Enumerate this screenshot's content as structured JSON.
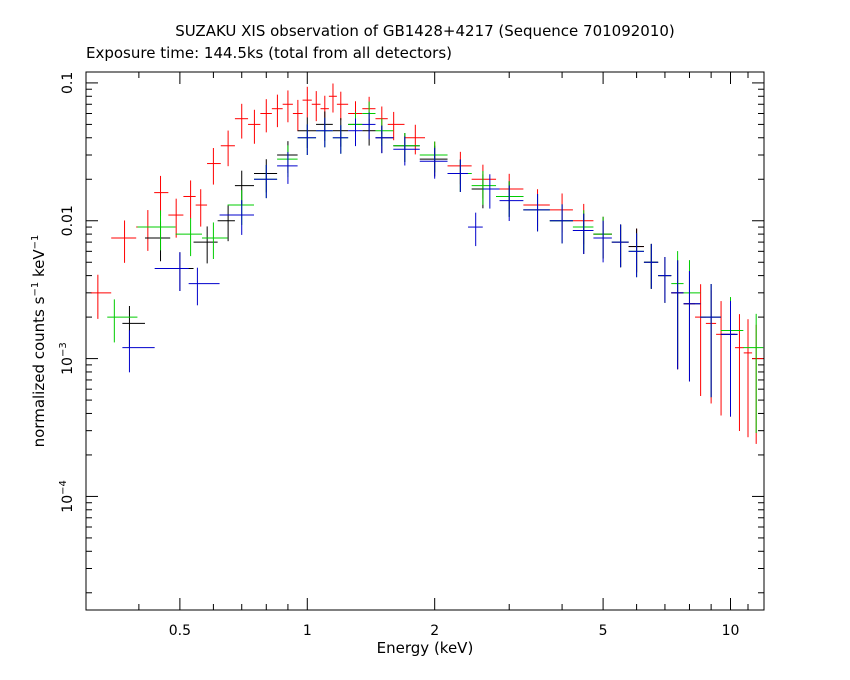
{
  "chart_data": {
    "type": "scatter",
    "title": "SUZAKU XIS observation of GB1428+4217 (Sequence 701092010)",
    "subtitle": "Exposure time: 144.5ks (total from all detectors)",
    "xlabel": "Energy (keV)",
    "ylabel": {
      "base": "normalized counts s",
      "sup1": "−1",
      "mid": " keV",
      "sup2": "−1"
    },
    "xscale": "log",
    "yscale": "log",
    "xlim": [
      0.3,
      12
    ],
    "ylim": [
      1.5e-05,
      0.12
    ],
    "x_ticks": [
      {
        "value": 0.5,
        "label": "0.5"
      },
      {
        "value": 1,
        "label": "1"
      },
      {
        "value": 2,
        "label": "2"
      },
      {
        "value": 5,
        "label": "5"
      },
      {
        "value": 10,
        "label": "10"
      }
    ],
    "y_ticks": [
      {
        "value": 0.1,
        "base": "0.1",
        "exp": ""
      },
      {
        "value": 0.01,
        "base": "0.01",
        "exp": ""
      },
      {
        "value": 0.001,
        "base": "10",
        "exp": "−3"
      },
      {
        "value": 0.0001,
        "base": "10",
        "exp": "−4"
      }
    ],
    "grid": false,
    "series": [
      {
        "color": "#ff0000",
        "data": [
          [
            0.32,
            0.003
          ],
          [
            0.37,
            0.0075
          ],
          [
            0.42,
            0.009
          ],
          [
            0.45,
            0.016
          ],
          [
            0.49,
            0.011
          ],
          [
            0.53,
            0.015
          ],
          [
            0.56,
            0.013
          ],
          [
            0.6,
            0.026
          ],
          [
            0.65,
            0.035
          ],
          [
            0.7,
            0.055
          ],
          [
            0.75,
            0.05
          ],
          [
            0.8,
            0.06
          ],
          [
            0.85,
            0.065
          ],
          [
            0.9,
            0.07
          ],
          [
            0.95,
            0.06
          ],
          [
            1.0,
            0.075
          ],
          [
            1.05,
            0.07
          ],
          [
            1.1,
            0.065
          ],
          [
            1.15,
            0.08
          ],
          [
            1.2,
            0.07
          ],
          [
            1.3,
            0.06
          ],
          [
            1.4,
            0.065
          ],
          [
            1.5,
            0.055
          ],
          [
            1.6,
            0.05
          ],
          [
            1.8,
            0.04
          ],
          [
            2.0,
            0.03
          ],
          [
            2.3,
            0.025
          ],
          [
            2.6,
            0.02
          ],
          [
            3.0,
            0.017
          ],
          [
            3.5,
            0.013
          ],
          [
            4.0,
            0.012
          ],
          [
            4.5,
            0.01
          ],
          [
            5.0,
            0.008
          ],
          [
            5.5,
            0.007
          ],
          [
            6.0,
            0.0065
          ],
          [
            6.5,
            0.005
          ],
          [
            7.0,
            0.004
          ],
          [
            7.5,
            0.003
          ],
          [
            8.0,
            0.0025
          ],
          [
            8.5,
            0.002
          ],
          [
            9.0,
            0.0018
          ],
          [
            9.5,
            0.0015
          ],
          [
            10.0,
            0.0015
          ],
          [
            10.5,
            0.0012
          ],
          [
            11.0,
            0.0011
          ],
          [
            11.5,
            0.001
          ]
        ]
      },
      {
        "color": "#000000",
        "data": [
          [
            0.38,
            0.0018
          ],
          [
            0.45,
            0.0075
          ],
          [
            0.5,
            0.0045
          ],
          [
            0.58,
            0.007
          ],
          [
            0.65,
            0.01
          ],
          [
            0.7,
            0.018
          ],
          [
            0.8,
            0.022
          ],
          [
            0.9,
            0.03
          ],
          [
            1.0,
            0.045
          ],
          [
            1.1,
            0.05
          ],
          [
            1.2,
            0.045
          ],
          [
            1.3,
            0.05
          ],
          [
            1.4,
            0.045
          ],
          [
            1.5,
            0.04
          ],
          [
            1.7,
            0.035
          ],
          [
            2.0,
            0.028
          ],
          [
            2.3,
            0.022
          ],
          [
            2.6,
            0.017
          ],
          [
            3.0,
            0.015
          ],
          [
            3.5,
            0.012
          ],
          [
            4.0,
            0.01
          ],
          [
            4.5,
            0.0085
          ],
          [
            5.0,
            0.008
          ],
          [
            5.5,
            0.007
          ],
          [
            6.0,
            0.0065
          ],
          [
            6.5,
            0.005
          ],
          [
            7.0,
            0.004
          ],
          [
            7.5,
            0.003
          ],
          [
            8.0,
            0.0025
          ],
          [
            9.0,
            0.002
          ],
          [
            10.0,
            0.0015
          ]
        ]
      },
      {
        "color": "#00cc00",
        "data": [
          [
            0.35,
            0.002
          ],
          [
            0.45,
            0.009
          ],
          [
            0.53,
            0.008
          ],
          [
            0.6,
            0.0075
          ],
          [
            0.7,
            0.013
          ],
          [
            0.8,
            0.02
          ],
          [
            0.9,
            0.028
          ],
          [
            1.0,
            0.04
          ],
          [
            1.1,
            0.045
          ],
          [
            1.2,
            0.04
          ],
          [
            1.3,
            0.05
          ],
          [
            1.4,
            0.06
          ],
          [
            1.5,
            0.045
          ],
          [
            1.7,
            0.035
          ],
          [
            2.0,
            0.03
          ],
          [
            2.3,
            0.022
          ],
          [
            2.6,
            0.018
          ],
          [
            3.0,
            0.015
          ],
          [
            3.5,
            0.012
          ],
          [
            4.0,
            0.01
          ],
          [
            4.5,
            0.009
          ],
          [
            5.0,
            0.008
          ],
          [
            5.5,
            0.007
          ],
          [
            6.0,
            0.006
          ],
          [
            6.5,
            0.005
          ],
          [
            7.0,
            0.004
          ],
          [
            7.5,
            0.0035
          ],
          [
            8.0,
            0.003
          ],
          [
            9.0,
            0.002
          ],
          [
            10.0,
            0.0016
          ],
          [
            11.5,
            0.0012
          ]
        ]
      },
      {
        "color": "#0000cc",
        "data": [
          [
            0.38,
            0.0012
          ],
          [
            0.5,
            0.0045
          ],
          [
            0.55,
            0.0035
          ],
          [
            0.7,
            0.011
          ],
          [
            0.8,
            0.02
          ],
          [
            0.9,
            0.025
          ],
          [
            1.0,
            0.04
          ],
          [
            1.1,
            0.045
          ],
          [
            1.2,
            0.04
          ],
          [
            1.3,
            0.045
          ],
          [
            1.4,
            0.05
          ],
          [
            1.5,
            0.04
          ],
          [
            1.7,
            0.033
          ],
          [
            2.0,
            0.027
          ],
          [
            2.3,
            0.022
          ],
          [
            2.5,
            0.009
          ],
          [
            2.7,
            0.017
          ],
          [
            3.0,
            0.014
          ],
          [
            3.5,
            0.012
          ],
          [
            4.0,
            0.01
          ],
          [
            4.5,
            0.0085
          ],
          [
            5.0,
            0.0075
          ],
          [
            5.5,
            0.007
          ],
          [
            6.0,
            0.006
          ],
          [
            6.5,
            0.005
          ],
          [
            7.0,
            0.004
          ],
          [
            7.5,
            0.003
          ],
          [
            8.0,
            0.0025
          ],
          [
            9.0,
            0.002
          ],
          [
            10.0,
            0.0015
          ]
        ]
      }
    ]
  }
}
